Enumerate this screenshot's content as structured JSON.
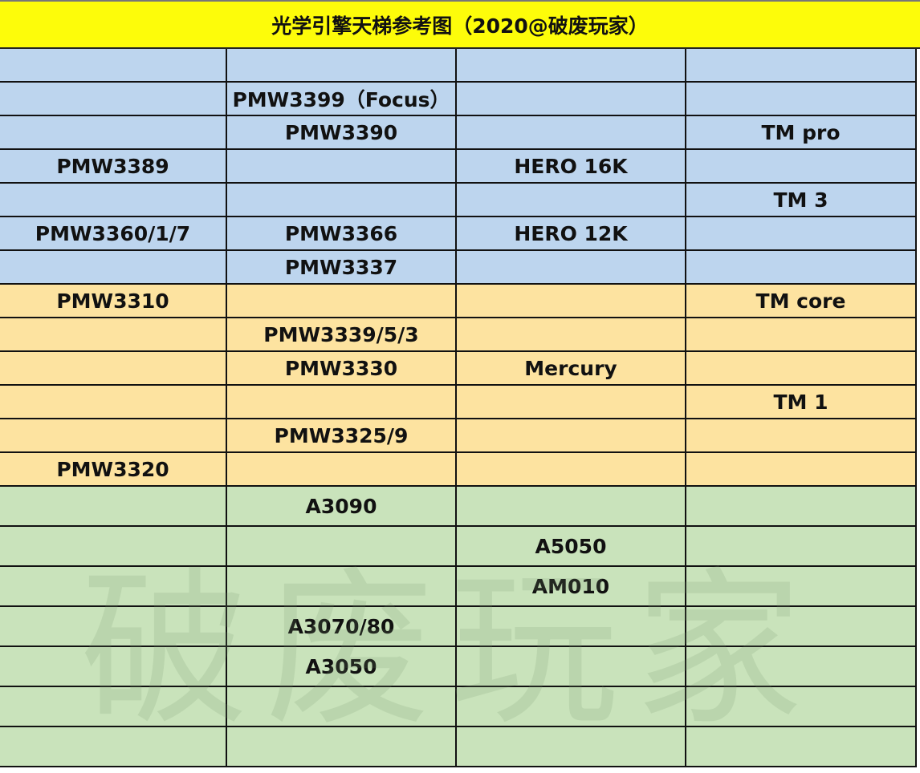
{
  "title": "光学引擎天梯参考图（2020@破废玩家）",
  "watermark": "破废玩家",
  "colors": {
    "title": "#fdfc0a",
    "tier1": "#bdd5ee",
    "tier2": "#fde3a0",
    "tier3": "#c9e3bb"
  },
  "rows": [
    {
      "tier": "blue",
      "cells": [
        "",
        "",
        "",
        ""
      ]
    },
    {
      "tier": "blue",
      "cells": [
        "",
        "PMW3399（Focus）",
        "",
        ""
      ]
    },
    {
      "tier": "blue",
      "cells": [
        "",
        "PMW3390",
        "",
        "TM pro"
      ]
    },
    {
      "tier": "blue",
      "cells": [
        "PMW3389",
        "",
        "HERO 16K",
        ""
      ]
    },
    {
      "tier": "blue",
      "cells": [
        "",
        "",
        "",
        "TM 3"
      ]
    },
    {
      "tier": "blue",
      "cells": [
        "PMW3360/1/7",
        "PMW3366",
        "HERO 12K",
        ""
      ]
    },
    {
      "tier": "blue",
      "cells": [
        "",
        "PMW3337",
        "",
        ""
      ]
    },
    {
      "tier": "orange",
      "cells": [
        "PMW3310",
        "",
        "",
        "TM core"
      ]
    },
    {
      "tier": "orange",
      "cells": [
        "",
        "PMW3339/5/3",
        "",
        ""
      ]
    },
    {
      "tier": "orange",
      "cells": [
        "",
        "PMW3330",
        "Mercury",
        ""
      ]
    },
    {
      "tier": "orange",
      "cells": [
        "",
        "",
        "",
        "TM 1"
      ]
    },
    {
      "tier": "orange",
      "cells": [
        "",
        "PMW3325/9",
        "",
        ""
      ]
    },
    {
      "tier": "orange",
      "cells": [
        "PMW3320",
        "",
        "",
        ""
      ]
    },
    {
      "tier": "green",
      "cells": [
        "",
        "A3090",
        "",
        ""
      ]
    },
    {
      "tier": "green",
      "cells": [
        "",
        "",
        "A5050",
        ""
      ]
    },
    {
      "tier": "green",
      "cells": [
        "",
        "",
        "AM010",
        ""
      ]
    },
    {
      "tier": "green",
      "cells": [
        "",
        "A3070/80",
        "",
        ""
      ]
    },
    {
      "tier": "green",
      "cells": [
        "",
        "A3050",
        "",
        ""
      ]
    },
    {
      "tier": "green",
      "cells": [
        "",
        "",
        "",
        ""
      ]
    },
    {
      "tier": "green",
      "cells": [
        "",
        "",
        "",
        ""
      ]
    }
  ]
}
